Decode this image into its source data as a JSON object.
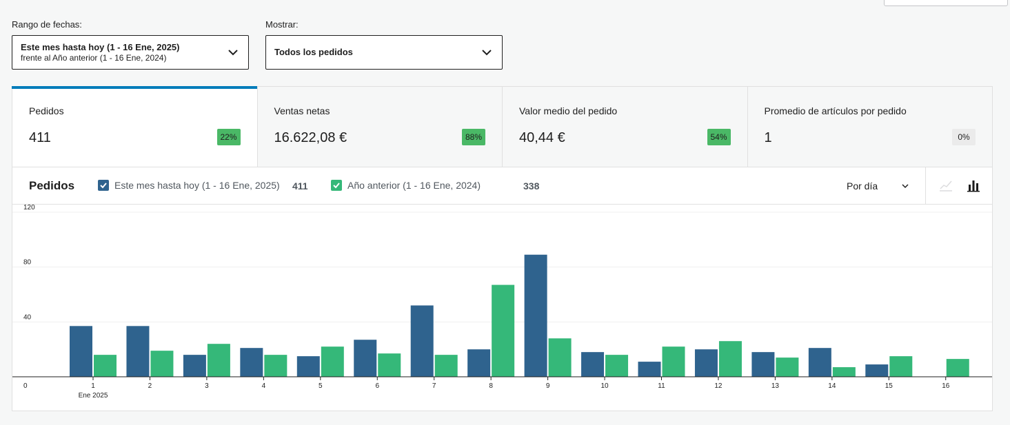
{
  "filters": {
    "date_range": {
      "label": "Rango de fechas:",
      "main": "Este mes hasta hoy (1 - 16 Ene, 2025)",
      "sub": "frente al Año anterior (1 - 16 Ene, 2024)"
    },
    "show": {
      "label": "Mostrar:",
      "main": "Todos los pedidos"
    }
  },
  "tiles": [
    {
      "label": "Pedidos",
      "value": "411",
      "delta": "22%",
      "selected": true
    },
    {
      "label": "Ventas netas",
      "value": "16.622,08 €",
      "delta": "88%"
    },
    {
      "label": "Valor medio del pedido",
      "value": "40,44 €",
      "delta": "54%"
    },
    {
      "label": "Promedio de artículos por pedido",
      "value": "1",
      "delta": "0%"
    }
  ],
  "chart_header": {
    "title": "Pedidos",
    "legend": [
      {
        "label": "Este mes hasta hoy (1 - 16 Ene, 2025)",
        "total": "411",
        "color": "#2f638e"
      },
      {
        "label": "Año anterior (1 - 16 Ene, 2024)",
        "total": "338",
        "color": "#35b879"
      }
    ],
    "interval": "Por día",
    "chart_type_icons": [
      "line-chart-icon",
      "bar-chart-icon"
    ]
  },
  "colors": {
    "accent": "#007cba",
    "positive_badge": "#4ab866",
    "neutral_badge": "#ebebeb"
  },
  "chart_data": {
    "type": "bar",
    "categories": [
      "1",
      "2",
      "3",
      "4",
      "5",
      "6",
      "7",
      "8",
      "9",
      "10",
      "11",
      "12",
      "13",
      "14",
      "15",
      "16"
    ],
    "x_sublabel": "Ene 2025",
    "yticks": [
      0,
      40,
      80,
      120
    ],
    "ylim": [
      0,
      120
    ],
    "grid": true,
    "series": [
      {
        "name": "Este mes hasta hoy (1 - 16 Ene, 2025)",
        "color": "#2f638e",
        "values": [
          37,
          37,
          16,
          21,
          15,
          27,
          52,
          20,
          89,
          18,
          11,
          20,
          18,
          21,
          9,
          0
        ]
      },
      {
        "name": "Año anterior (1 - 16 Ene, 2024)",
        "color": "#35b879",
        "values": [
          16,
          19,
          24,
          16,
          22,
          17,
          16,
          67,
          28,
          16,
          22,
          26,
          14,
          7,
          15,
          13
        ]
      }
    ]
  }
}
